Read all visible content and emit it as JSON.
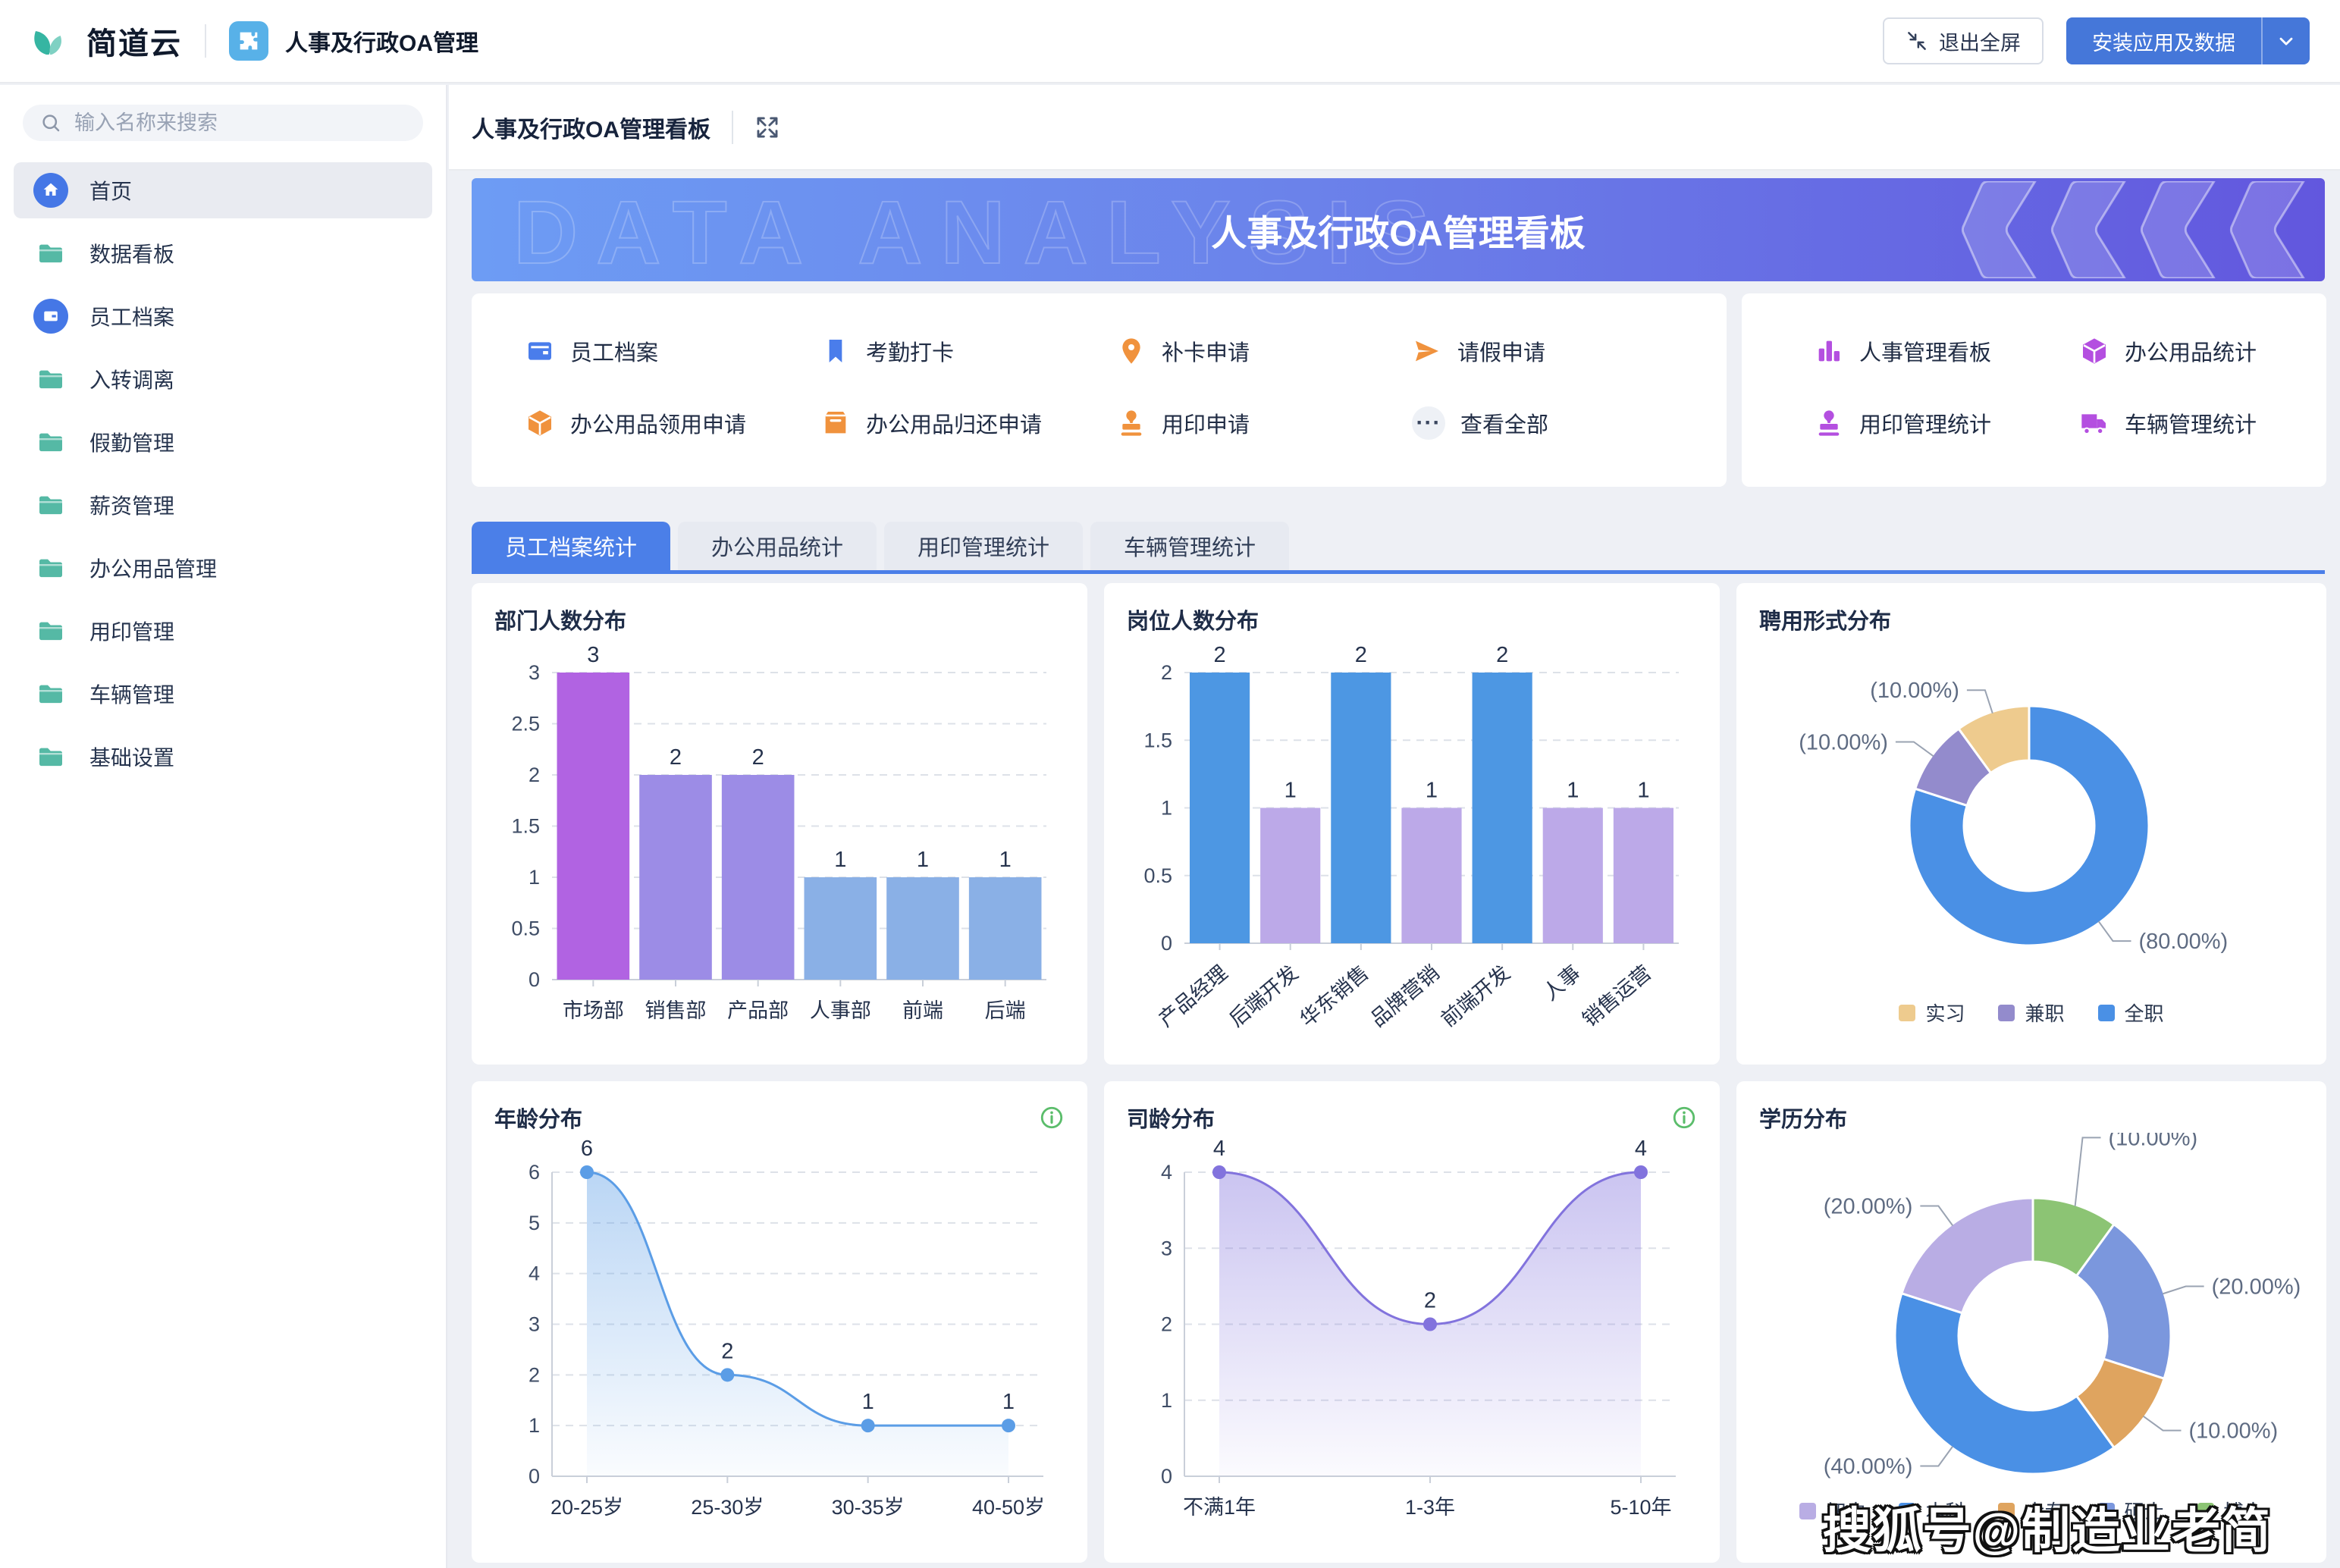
{
  "header": {
    "logo_text": "简道云",
    "app_name": "人事及行政OA管理",
    "exit_fullscreen_label": "退出全屏",
    "install_button_label": "安装应用及数据"
  },
  "sidebar": {
    "search_placeholder": "输入名称来搜索",
    "items": [
      {
        "label": "首页",
        "icon": "home-icon",
        "active": true
      },
      {
        "label": "数据看板",
        "icon": "folder-icon",
        "active": false
      },
      {
        "label": "员工档案",
        "icon": "wallet-icon",
        "active": false
      },
      {
        "label": "入转调离",
        "icon": "folder-icon",
        "active": false
      },
      {
        "label": "假勤管理",
        "icon": "folder-icon",
        "active": false
      },
      {
        "label": "薪资管理",
        "icon": "folder-icon",
        "active": false
      },
      {
        "label": "办公用品管理",
        "icon": "folder-icon",
        "active": false
      },
      {
        "label": "用印管理",
        "icon": "folder-icon",
        "active": false
      },
      {
        "label": "车辆管理",
        "icon": "folder-icon",
        "active": false
      },
      {
        "label": "基础设置",
        "icon": "folder-icon",
        "active": false
      }
    ]
  },
  "page": {
    "breadcrumb": "人事及行政OA管理看板",
    "banner_title": "人事及行政OA管理看板",
    "banner_watermark": "DATA ANALYSIS"
  },
  "quick_links": {
    "left": [
      {
        "label": "员工档案",
        "icon": "wallet-icon",
        "color": "#4a7deb"
      },
      {
        "label": "考勤打卡",
        "icon": "bookmark-icon",
        "color": "#4a7deb"
      },
      {
        "label": "补卡申请",
        "icon": "pin-icon",
        "color": "#f0923d"
      },
      {
        "label": "请假申请",
        "icon": "send-icon",
        "color": "#f0923d"
      },
      {
        "label": "办公用品领用申请",
        "icon": "box-icon",
        "color": "#f0923d"
      },
      {
        "label": "办公用品归还申请",
        "icon": "inbox-icon",
        "color": "#f0923d"
      },
      {
        "label": "用印申请",
        "icon": "stamp-icon",
        "color": "#f0923d"
      },
      {
        "label": "查看全部",
        "icon": "ellipsis-icon",
        "color": "#39455e"
      }
    ],
    "right": [
      {
        "label": "人事管理看板",
        "icon": "bar-chart-icon",
        "color": "#b44fe0"
      },
      {
        "label": "办公用品统计",
        "icon": "box-icon",
        "color": "#b44fe0"
      },
      {
        "label": "用印管理统计",
        "icon": "stamp-icon",
        "color": "#b44fe0"
      },
      {
        "label": "车辆管理统计",
        "icon": "truck-icon",
        "color": "#b44fe0"
      }
    ]
  },
  "tabs": [
    {
      "label": "员工档案统计",
      "active": true
    },
    {
      "label": "办公用品统计",
      "active": false
    },
    {
      "label": "用印管理统计",
      "active": false
    },
    {
      "label": "车辆管理统计",
      "active": false
    }
  ],
  "watermark": "搜狐号@制造业老简",
  "colors": {
    "accent_blue": "#4577d9",
    "tab_blue": "#4b7fe8",
    "folder_teal": "#55b9a5",
    "quick_orange": "#f0923d",
    "quick_purple": "#b44fe0",
    "info_green": "#5bbd6b"
  },
  "chart_data": [
    {
      "type": "bar",
      "title": "部门人数分布",
      "categories": [
        "市场部",
        "销售部",
        "产品部",
        "人事部",
        "前端",
        "后端"
      ],
      "values": [
        3,
        2,
        2,
        1,
        1,
        1
      ],
      "bar_colors": [
        "#b163e2",
        "#9c8ce6",
        "#9c8ce6",
        "#8ab0e6",
        "#8ab0e6",
        "#8ab0e6"
      ],
      "ylim": [
        0,
        3
      ],
      "yticks": [
        0,
        0.5,
        1,
        1.5,
        2,
        2.5,
        3
      ],
      "grid": "dashed",
      "xlabel": "",
      "ylabel": ""
    },
    {
      "type": "bar",
      "title": "岗位人数分布",
      "categories": [
        "产品经理",
        "后端开发",
        "华东销售",
        "品牌营销",
        "前端开发",
        "人事",
        "销售运营"
      ],
      "values": [
        2,
        1,
        2,
        1,
        2,
        1,
        1
      ],
      "bar_colors": [
        "#4d97e3",
        "#bca9e8",
        "#4d97e3",
        "#bca9e8",
        "#4d97e3",
        "#bca9e8",
        "#bca9e8"
      ],
      "ylim": [
        0,
        2
      ],
      "yticks": [
        0,
        0.5,
        1,
        1.5,
        2
      ],
      "grid": "dashed",
      "rotate_labels": true,
      "xlabel": "",
      "ylabel": ""
    },
    {
      "type": "pie",
      "title": "聘用形式分布",
      "donut": true,
      "slices": [
        {
          "name": "全职",
          "value": 80,
          "color": "#4a90e5",
          "label": "(80.00%)"
        },
        {
          "name": "兼职",
          "value": 10,
          "color": "#938bcc",
          "label": "(10.00%)"
        },
        {
          "name": "实习",
          "value": 10,
          "color": "#eecb8e",
          "label": "(10.00%)"
        }
      ],
      "legend": [
        {
          "label": "实习",
          "color": "#eecb8e"
        },
        {
          "label": "兼职",
          "color": "#938bcc"
        },
        {
          "label": "全职",
          "color": "#4a90e5"
        }
      ],
      "legend_position": "bottom"
    },
    {
      "type": "area",
      "title": "年龄分布",
      "info_icon": true,
      "categories": [
        "20-25岁",
        "25-30岁",
        "30-35岁",
        "40-50岁"
      ],
      "values": [
        6,
        2,
        1,
        1
      ],
      "color": "#5b9de6",
      "ylim": [
        0,
        6
      ],
      "yticks": [
        0,
        1,
        2,
        3,
        4,
        5,
        6
      ],
      "grid": "dashed",
      "xlabel": "",
      "ylabel": ""
    },
    {
      "type": "area",
      "title": "司龄分布",
      "info_icon": true,
      "categories": [
        "不满1年",
        "1-3年",
        "5-10年"
      ],
      "values": [
        4,
        2,
        4
      ],
      "color": "#8273dd",
      "ylim": [
        0,
        4
      ],
      "yticks": [
        0,
        1,
        2,
        3,
        4
      ],
      "grid": "dashed",
      "xlabel": "",
      "ylabel": ""
    },
    {
      "type": "pie",
      "title": "学历分布",
      "donut": true,
      "slices": [
        {
          "name": "博士",
          "value": 10,
          "color": "#8cc474",
          "label": "(10.00%)",
          "label_dy": -60
        },
        {
          "name": "硕士",
          "value": 20,
          "color": "#7b97dd",
          "label": "(20.00%)"
        },
        {
          "name": "大专",
          "value": 10,
          "color": "#dfa45f",
          "label": "(10.00%)"
        },
        {
          "name": "本科",
          "value": 40,
          "color": "#4a90e5",
          "label": "(40.00%)"
        },
        {
          "name": "初中",
          "value": 20,
          "color": "#b9ade4",
          "label": "(20.00%)"
        }
      ],
      "legend": [
        {
          "label": "初中",
          "color": "#b9ade4"
        },
        {
          "label": "本科",
          "color": "#4a90e5"
        },
        {
          "label": "大专",
          "color": "#dfa45f"
        },
        {
          "label": "硕士",
          "color": "#7b97dd"
        },
        {
          "label": "博士",
          "color": "#8cc474"
        }
      ],
      "legend_position": "bottom"
    }
  ]
}
